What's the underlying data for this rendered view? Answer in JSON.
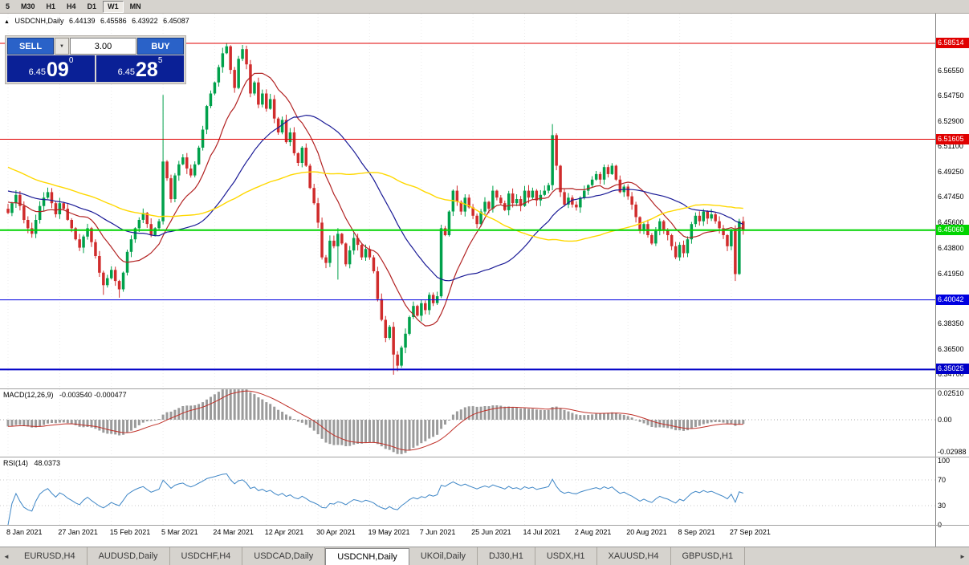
{
  "toolbar": {
    "timeframes": [
      {
        "label": "5",
        "active": false
      },
      {
        "label": "M30",
        "active": false
      },
      {
        "label": "H1",
        "active": false
      },
      {
        "label": "H4",
        "active": false
      },
      {
        "label": "D1",
        "active": false
      },
      {
        "label": "W1",
        "active": true
      },
      {
        "label": "MN",
        "active": false
      }
    ]
  },
  "icons": {
    "dropdown": "▼",
    "marker": "▲",
    "tab_scroll_left": "◄",
    "tab_scroll_right": "►"
  },
  "chart": {
    "header": {
      "symbol": "USDCNH,Daily",
      "open": "6.44139",
      "high": "6.45586",
      "low": "6.43922",
      "close": "6.45087"
    },
    "trade_panel": {
      "sell_label": "SELL",
      "buy_label": "BUY",
      "volume": "3.00",
      "sell_price": {
        "base": "6.45",
        "big": "09",
        "sup": "0"
      },
      "buy_price": {
        "base": "6.45",
        "big": "28",
        "sup": "5"
      }
    },
    "price_axis": {
      "ticks": [
        "6.56550",
        "6.54750",
        "6.52900",
        "6.51100",
        "6.49250",
        "6.47450",
        "6.45600",
        "6.43800",
        "6.41950",
        "6.38350",
        "6.36500",
        "6.34700"
      ]
    },
    "levels": [
      {
        "price": 6.58514,
        "label": "6.58514",
        "color": "#E00000",
        "width": 1
      },
      {
        "price": 6.51605,
        "label": "6.51605",
        "color": "#E00000",
        "width": 1
      },
      {
        "price": 6.4506,
        "label": "6.45060",
        "color": "#00D400",
        "width": 2
      },
      {
        "price": 6.40042,
        "label": "6.40042",
        "color": "#0000E0",
        "width": 1
      },
      {
        "price": 6.35025,
        "label": "6.35025",
        "color": "#0000C8",
        "width": 2
      }
    ],
    "date_axis": [
      "8 Jan 2021",
      "27 Jan 2021",
      "15 Feb 2021",
      "5 Mar 2021",
      "24 Mar 2021",
      "12 Apr 2021",
      "30 Apr 2021",
      "19 May 2021",
      "7 Jun 2021",
      "25 Jun 2021",
      "14 Jul 2021",
      "2 Aug 2021",
      "20 Aug 2021",
      "8 Sep 2021",
      "27 Sep 2021"
    ]
  },
  "chart_data": {
    "type": "candlestick",
    "symbol": "USDCNH",
    "timeframe": "Daily",
    "visible_range": [
      "8 Jan 2021",
      "8 Oct 2021"
    ],
    "price_range_visible": [
      6.3366,
      6.6065
    ],
    "colors": {
      "bull": "#00A14B",
      "bear": "#D02C2C",
      "macd_hist": "#9b9b9b",
      "macd_signal": "#C03028",
      "rsi_line": "#3E86C6",
      "grid": "#ececec"
    },
    "preroll_closes": [
      6.575,
      6.572,
      6.568,
      6.565,
      6.561,
      6.558,
      6.555,
      6.551,
      6.548,
      6.545,
      6.542,
      6.538,
      6.535,
      6.532,
      6.529,
      6.526,
      6.523,
      6.52,
      6.518,
      6.515,
      6.513,
      6.51,
      6.508,
      6.506,
      6.504,
      6.502,
      6.5,
      6.499,
      6.497,
      6.496,
      6.495,
      6.494,
      6.493,
      6.492,
      6.491,
      6.49,
      6.49,
      6.489,
      6.488,
      6.488,
      6.487,
      6.487,
      6.486,
      6.486,
      6.485,
      6.485,
      6.484,
      6.484,
      6.483,
      6.483,
      6.482,
      6.482,
      6.481,
      6.481,
      6.48,
      6.48,
      6.479,
      6.478,
      6.477,
      6.476,
      6.475,
      6.474,
      6.473,
      6.472,
      6.471,
      6.47,
      6.469,
      6.468,
      6.467,
      6.466
    ],
    "closes": [
      6.463,
      6.47,
      6.476,
      6.468,
      6.458,
      6.452,
      6.448,
      6.458,
      6.468,
      6.474,
      6.478,
      6.47,
      6.462,
      6.47,
      6.466,
      6.458,
      6.452,
      6.444,
      6.438,
      6.446,
      6.452,
      6.442,
      6.432,
      6.42,
      6.411,
      6.416,
      6.422,
      6.414,
      6.408,
      6.42,
      6.435,
      6.444,
      6.452,
      6.458,
      6.463,
      6.455,
      6.447,
      6.452,
      6.457,
      6.5,
      6.488,
      6.473,
      6.49,
      6.498,
      6.503,
      6.495,
      6.49,
      6.498,
      6.51,
      6.523,
      6.54,
      6.549,
      6.557,
      6.568,
      6.578,
      6.583,
      6.566,
      6.553,
      6.574,
      6.581,
      6.57,
      6.549,
      6.557,
      6.541,
      6.549,
      6.538,
      6.545,
      6.531,
      6.521,
      6.53,
      6.514,
      6.521,
      6.506,
      6.499,
      6.51,
      6.497,
      6.481,
      6.47,
      6.456,
      6.431,
      6.427,
      6.443,
      6.439,
      6.448,
      6.441,
      6.426,
      6.436,
      6.445,
      6.44,
      6.431,
      6.437,
      6.431,
      6.421,
      6.401,
      6.386,
      6.373,
      6.381,
      6.361,
      6.353,
      6.366,
      6.376,
      6.388,
      6.396,
      6.389,
      6.398,
      6.393,
      6.404,
      6.398,
      6.403,
      6.452,
      6.447,
      6.464,
      6.479,
      6.471,
      6.464,
      6.474,
      6.467,
      6.461,
      6.455,
      6.464,
      6.471,
      6.466,
      6.479,
      6.474,
      6.47,
      6.465,
      6.477,
      6.47,
      6.473,
      6.468,
      6.479,
      6.474,
      6.479,
      6.472,
      6.476,
      6.479,
      6.483,
      6.519,
      6.497,
      6.478,
      6.469,
      6.474,
      6.469,
      6.467,
      6.474,
      6.479,
      6.483,
      6.487,
      6.491,
      6.487,
      6.496,
      6.491,
      6.497,
      6.487,
      6.478,
      6.482,
      6.475,
      6.469,
      6.46,
      6.45,
      6.455,
      6.447,
      6.441,
      6.45,
      6.457,
      6.451,
      6.447,
      6.439,
      6.431,
      6.44,
      6.434,
      6.444,
      6.455,
      6.461,
      6.457,
      6.464,
      6.459,
      6.462,
      6.457,
      6.452,
      6.447,
      6.439,
      6.451,
      6.419,
      6.457,
      6.451
    ],
    "wick_overrides": {
      "24": {
        "low": 6.404
      },
      "28": {
        "low": 6.402
      },
      "39": {
        "high": 6.548
      },
      "55": {
        "high": 6.5855
      },
      "59": {
        "high": 6.584
      },
      "83": {
        "low": 6.415
      },
      "97": {
        "low": 6.3465
      },
      "98": {
        "low": 6.349
      },
      "137": {
        "high": 6.527
      },
      "183": {
        "low": 6.414
      }
    },
    "moving_averages": [
      {
        "period": 13,
        "color": "#B22222",
        "width": 1.2
      },
      {
        "period": 34,
        "color": "#1A1A96",
        "width": 1.2
      },
      {
        "period": 65,
        "color": "#FFD800",
        "width": 1.4
      }
    ],
    "macd": {
      "label": "MACD(12,26,9)",
      "values": "-0.003540 -0.000477",
      "fast": 12,
      "slow": 26,
      "signal": 9,
      "axis": [
        {
          "label": "0.02510",
          "value": 0.0251
        },
        {
          "label": "0.00",
          "value": 0
        },
        {
          "label": "-0.02988",
          "value": -0.02988
        }
      ]
    },
    "rsi": {
      "label": "RSI(14)",
      "value": "48.0373",
      "period": 14,
      "levels": [
        70,
        30
      ],
      "axis": [
        {
          "label": "100",
          "value": 100
        },
        {
          "label": "70",
          "value": 70
        },
        {
          "label": "30",
          "value": 30
        },
        {
          "label": "0",
          "value": 0
        }
      ]
    }
  },
  "tabs": {
    "items": [
      {
        "label": "EURUSD,H4",
        "active": false
      },
      {
        "label": "AUDUSD,Daily",
        "active": false
      },
      {
        "label": "USDCHF,H4",
        "active": false
      },
      {
        "label": "USDCAD,Daily",
        "active": false
      },
      {
        "label": "USDCNH,Daily",
        "active": true
      },
      {
        "label": "UKOil,Daily",
        "active": false
      },
      {
        "label": "DJ30,H1",
        "active": false
      },
      {
        "label": "USDX,H1",
        "active": false
      },
      {
        "label": "XAUUSD,H4",
        "active": false
      },
      {
        "label": "GBPUSD,H1",
        "active": false
      }
    ]
  }
}
